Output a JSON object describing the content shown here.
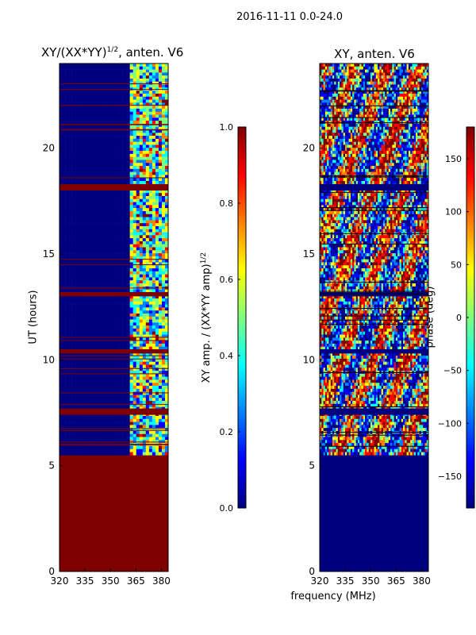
{
  "suptitle": "2016-11-11 0.0-24.0",
  "chart_data": [
    {
      "type": "heatmap",
      "title_main": "XY/(XX*YY)",
      "title_sup": "1/2",
      "title_tail": ", anten. V6",
      "ylabel": "UT (hours)",
      "x_ticks": [
        "320",
        "335",
        "350",
        "365",
        "380"
      ],
      "x_tick_values": [
        320,
        335,
        350,
        365,
        380
      ],
      "y_ticks": [
        "0",
        "5",
        "10",
        "15",
        "20"
      ],
      "y_tick_values": [
        0,
        5,
        10,
        15,
        20
      ],
      "xlim": [
        320,
        384
      ],
      "ylim": [
        0,
        24
      ],
      "colorbar_label_main": "XY amp. / (XX*YY amp)",
      "colorbar_label_sup": "1/2",
      "colorbar_ticks": [
        "0.0",
        "0.2",
        "0.4",
        "0.6",
        "0.8",
        "1.0"
      ],
      "colorbar_tick_values": [
        0.0,
        0.2,
        0.4,
        0.6,
        0.8,
        1.0
      ],
      "colorbar_range": [
        0,
        1
      ],
      "no_data_end_hour": 5.5,
      "signal_start_mhz": 361,
      "flagged_hour_bands": [
        [
          7.4,
          7.7
        ],
        [
          10.3,
          10.5
        ],
        [
          13.0,
          13.2
        ],
        [
          18.0,
          18.3
        ]
      ]
    },
    {
      "type": "heatmap",
      "title": "XY, anten. V6",
      "x_ticks": [
        "320",
        "335",
        "350",
        "365",
        "380"
      ],
      "x_tick_values": [
        320,
        335,
        350,
        365,
        380
      ],
      "y_ticks": [
        "0",
        "5",
        "10",
        "15",
        "20"
      ],
      "y_tick_values": [
        0,
        5,
        10,
        15,
        20
      ],
      "xlim": [
        320,
        384
      ],
      "ylim": [
        0,
        24
      ],
      "xlabel": "frequency (MHz)",
      "colorbar_label": "phase (deg)",
      "colorbar_ticks": [
        "−150",
        "−100",
        "−50",
        "0",
        "50",
        "100",
        "150"
      ],
      "colorbar_tick_values": [
        -150,
        -100,
        -50,
        0,
        50,
        100,
        150
      ],
      "colorbar_range": [
        -180,
        180
      ],
      "no_data_end_hour": 5.5,
      "flagged_hour_bands": [
        [
          7.4,
          7.7
        ],
        [
          10.3,
          10.5
        ],
        [
          13.0,
          13.2
        ],
        [
          18.0,
          18.3
        ]
      ]
    }
  ],
  "colors": {
    "jet_stops": [
      "#00007f",
      "#0000ff",
      "#007fff",
      "#00ffff",
      "#7fff7f",
      "#ffff00",
      "#ff7f00",
      "#ff0000",
      "#7f0000"
    ]
  }
}
